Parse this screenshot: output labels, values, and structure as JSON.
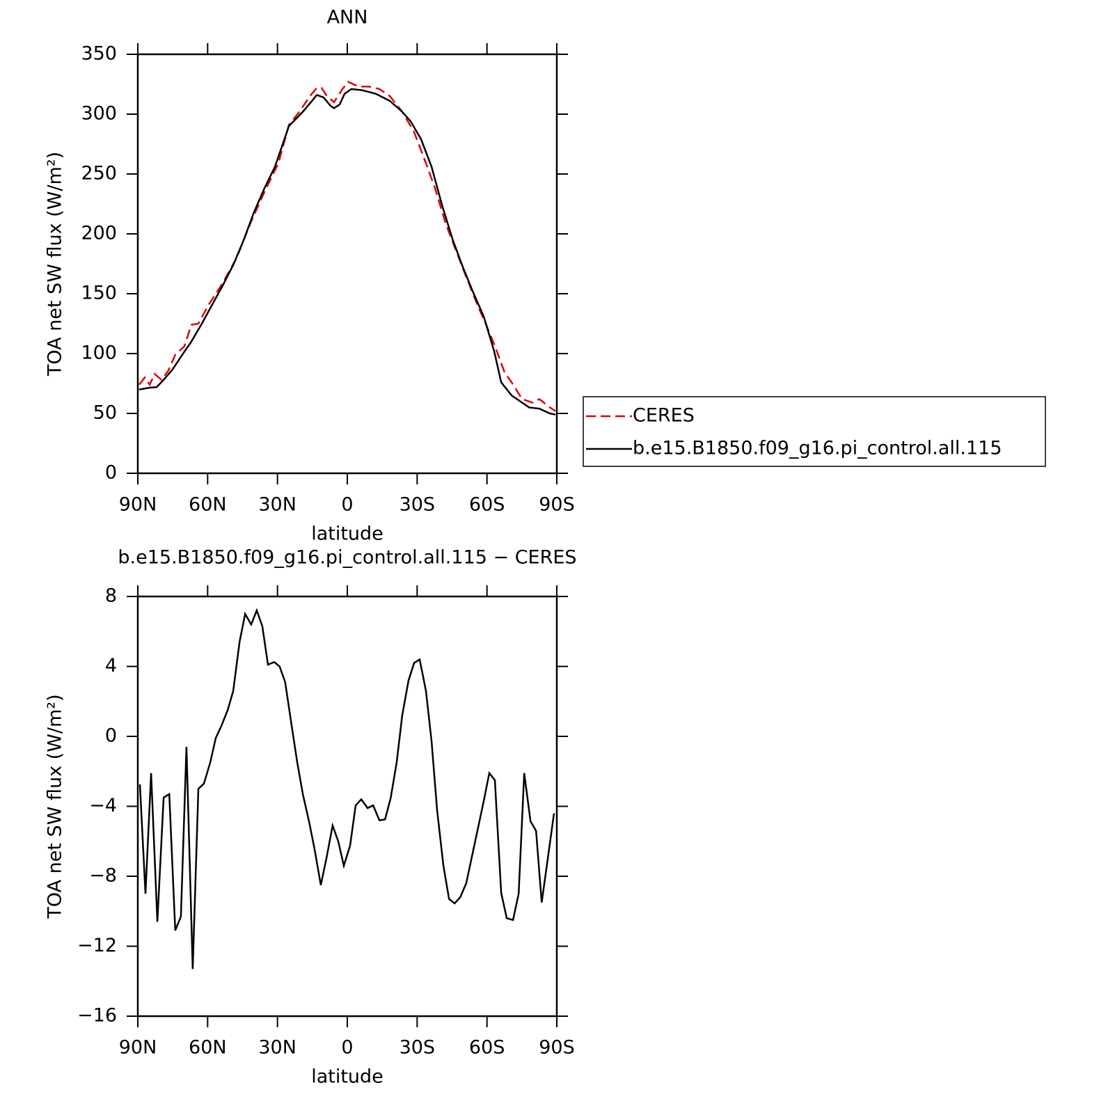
{
  "chart_data": [
    {
      "type": "line",
      "title": "ANN",
      "xlabel": "latitude",
      "ylabel": "TOA net SW flux (W/m²)",
      "xlim": [
        90,
        -90
      ],
      "ylim": [
        0,
        350
      ],
      "xticks": [
        {
          "value": 90,
          "label": "90N"
        },
        {
          "value": 60,
          "label": "60N"
        },
        {
          "value": 30,
          "label": "30N"
        },
        0,
        {
          "value": -30,
          "label": "30S"
        },
        {
          "value": -60,
          "label": "60S"
        },
        {
          "value": -90,
          "label": "90S"
        }
      ],
      "yticks": [
        0,
        50,
        100,
        150,
        200,
        250,
        300,
        350
      ],
      "legend": "right",
      "series": [
        {
          "name": "CERES",
          "color": "#e00000",
          "linestyle": "dashed",
          "x": [
            89.4,
            87.0,
            84.9,
            82.8,
            79.8,
            76.8,
            73.9,
            70.0,
            67.0,
            64.0,
            59.5,
            53.5,
            47.5,
            41.6,
            35.6,
            29.6,
            25.1,
            20.6,
            16.1,
            13.1,
            11.1,
            8.7,
            5.7,
            2.1,
            -0.3,
            -4.8,
            -9.3,
            -13.8,
            -18.3,
            -23.6,
            -28.7,
            -33.8,
            -37.7,
            -42.2,
            -46.7,
            -51.1,
            -55.6,
            -60.1,
            -63.7,
            -67.6,
            -70.6,
            -75.1,
            -79.6,
            -82.5,
            -87.0,
            -89.4
          ],
          "values": [
            74,
            80,
            74,
            83,
            78,
            86,
            99,
            106,
            124,
            125,
            141,
            159,
            180,
            209,
            235,
            259,
            291,
            302,
            315,
            322,
            322,
            315,
            310,
            321,
            327,
            323,
            323,
            321,
            315,
            302,
            285,
            259,
            238,
            209,
            186,
            164,
            142,
            122,
            105,
            84,
            76,
            62,
            59,
            62,
            55,
            52
          ]
        },
        {
          "name": "b.e15.B1850.f09_g16.pi_control.all.115",
          "color": "#000000",
          "linestyle": "solid",
          "x": [
            89.4,
            84.9,
            81.9,
            78.9,
            75.0,
            70.9,
            67.0,
            62.5,
            58.0,
            53.5,
            49.0,
            44.5,
            40.1,
            35.6,
            31.1,
            25.1,
            19.1,
            15.2,
            13.1,
            10.2,
            7.2,
            5.7,
            3.3,
            1.2,
            -1.8,
            -6.3,
            -12.3,
            -18.3,
            -23.6,
            -27.2,
            -31.7,
            -36.2,
            -40.7,
            -45.3,
            -49.7,
            -54.1,
            -58.6,
            -63.1,
            -66.1,
            -70.6,
            -75.1,
            -78.1,
            -82.5,
            -87.0,
            -89.4
          ],
          "values": [
            70,
            71.5,
            72,
            78,
            87,
            99,
            110,
            125,
            141,
            157,
            174,
            195,
            218,
            238,
            256,
            290,
            302,
            311,
            316,
            314,
            307,
            305,
            308,
            317,
            321,
            320,
            317,
            311,
            302,
            294,
            279,
            256,
            224,
            195,
            172,
            151,
            131,
            102,
            76,
            65,
            59,
            55,
            54,
            50,
            49
          ]
        }
      ]
    },
    {
      "type": "line",
      "title": "b.e15.B1850.f09_g16.pi_control.all.115 − CERES",
      "xlabel": "latitude",
      "ylabel": "TOA net SW flux (W/m²)",
      "xlim": [
        90,
        -90
      ],
      "ylim": [
        -16,
        8
      ],
      "xticks": [
        {
          "value": 90,
          "label": "90N"
        },
        {
          "value": 60,
          "label": "60N"
        },
        {
          "value": 30,
          "label": "30N"
        },
        0,
        {
          "value": -30,
          "label": "30S"
        },
        {
          "value": -60,
          "label": "60S"
        },
        {
          "value": -90,
          "label": "90S"
        }
      ],
      "yticks": [
        {
          "value": -16,
          "label": "−16"
        },
        {
          "value": -12,
          "label": "−12"
        },
        {
          "value": -8,
          "label": "−8"
        },
        {
          "value": -4,
          "label": "−4"
        },
        0,
        4,
        8
      ],
      "series": [
        {
          "color": "#000000",
          "linestyle": "solid",
          "x": [
            89.1,
            86.7,
            84.3,
            81.6,
            78.9,
            76.5,
            73.9,
            71.5,
            69.1,
            66.4,
            64.0,
            61.6,
            58.9,
            56.5,
            54.1,
            51.4,
            49.0,
            46.3,
            43.9,
            41.3,
            38.9,
            36.5,
            34.1,
            31.4,
            29.1,
            26.7,
            23.9,
            21.5,
            19.1,
            16.4,
            14.0,
            11.4,
            9.0,
            6.3,
            3.9,
            1.5,
            -1.2,
            -3.6,
            -6.0,
            -8.7,
            -11.1,
            -13.8,
            -16.2,
            -18.6,
            -21.2,
            -23.6,
            -26.3,
            -28.7,
            -31.1,
            -33.8,
            -36.2,
            -38.6,
            -41.3,
            -43.7,
            -46.1,
            -48.5,
            -51.1,
            -53.5,
            -56.2,
            -58.6,
            -61.0,
            -63.4,
            -66.1,
            -68.5,
            -71.2,
            -73.6,
            -76.0,
            -78.7,
            -81.1,
            -83.5,
            -86.1,
            -88.8
          ],
          "values": [
            -2.75,
            -9.0,
            -2.1,
            -10.6,
            -3.5,
            -3.3,
            -11.1,
            -10.3,
            -0.6,
            -13.3,
            -3.0,
            -2.7,
            -1.5,
            -0.1,
            0.6,
            1.5,
            2.6,
            5.4,
            7.0,
            6.4,
            7.2,
            6.3,
            4.1,
            4.25,
            4.0,
            3.1,
            0.6,
            -1.5,
            -3.3,
            -4.9,
            -6.5,
            -8.5,
            -7.0,
            -5.1,
            -6.0,
            -7.4,
            -6.25,
            -3.95,
            -3.6,
            -4.1,
            -3.95,
            -4.8,
            -4.75,
            -3.55,
            -1.5,
            1.2,
            3.2,
            4.2,
            4.4,
            2.6,
            -0.3,
            -4.25,
            -7.4,
            -9.3,
            -9.55,
            -9.2,
            -8.4,
            -6.9,
            -5.2,
            -3.7,
            -2.1,
            -2.5,
            -8.95,
            -10.4,
            -10.5,
            -9.0,
            -2.1,
            -4.85,
            -5.4,
            -9.5,
            -7.0,
            -4.4
          ]
        }
      ]
    }
  ]
}
